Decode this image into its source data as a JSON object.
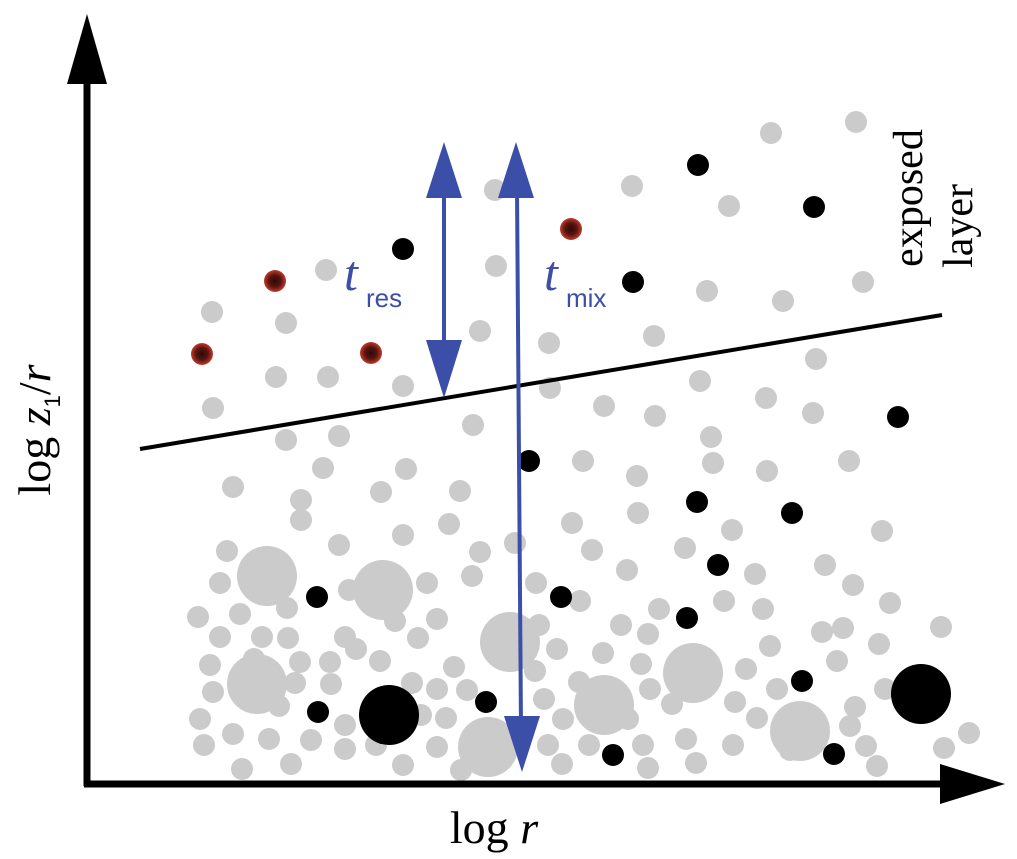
{
  "axes": {
    "x": {
      "prefix": "log ",
      "var": "r"
    },
    "y": {
      "prefix": "log ",
      "var1": "z",
      "sub": "1",
      "sep": "/",
      "var2": "r"
    }
  },
  "labels": {
    "exposed": "exposed",
    "layer": "layer",
    "t_res": {
      "main": "t",
      "sub": "res"
    },
    "t_mix": {
      "main": "t",
      "sub": "mix"
    }
  },
  "colors": {
    "axis": "#000000",
    "arrow": "#3b4fa8",
    "grain_gray": "#cbcbcb",
    "grain_black": "#000000",
    "grain_red": "#b0281e",
    "line": "#000000"
  }
}
